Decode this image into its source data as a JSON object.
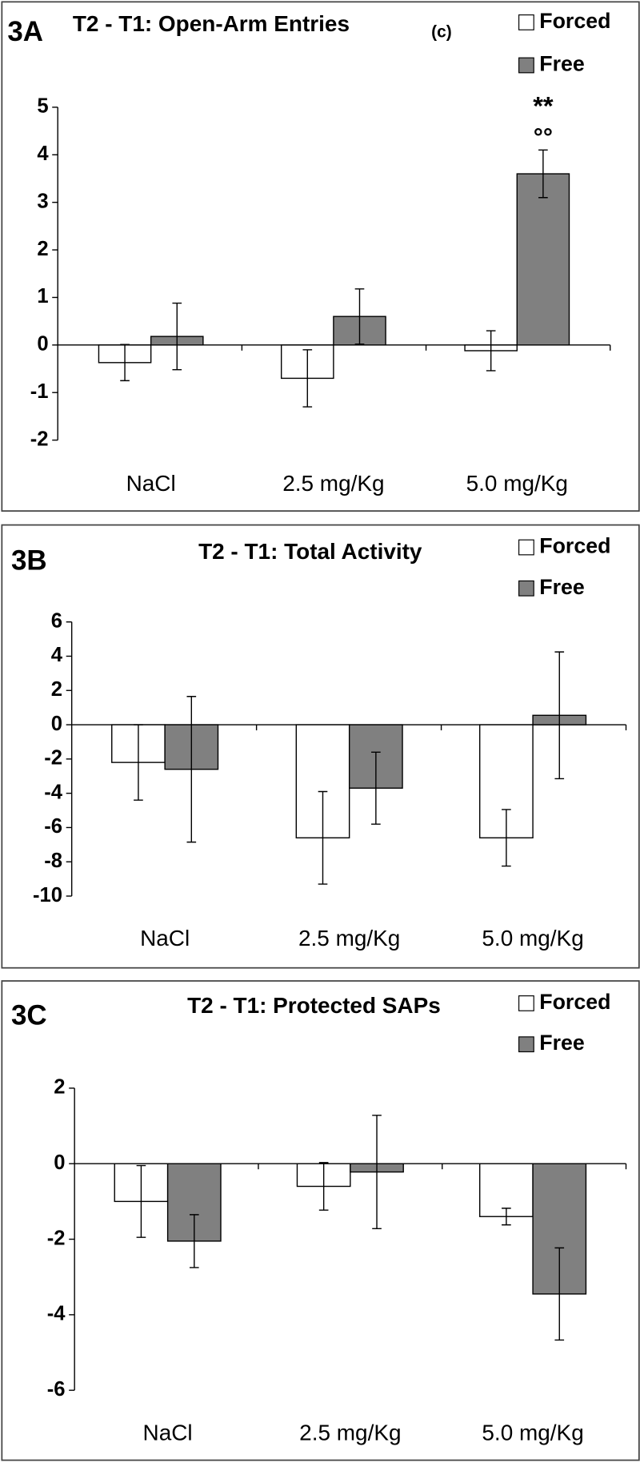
{
  "chart_data": [
    {
      "type": "bar",
      "panel_label": "3A",
      "title": "T2 - T1: Open-Arm Entries",
      "title_note": "(c)",
      "categories": [
        "NaCl",
        "2.5 mg/Kg",
        "5.0 mg/Kg"
      ],
      "series": [
        {
          "name": "Forced",
          "color": "#ffffff",
          "values": [
            -0.37,
            -0.7,
            -0.12
          ],
          "errors": [
            0.38,
            0.6,
            0.42
          ]
        },
        {
          "name": "Free",
          "color": "#808080",
          "values": [
            0.18,
            0.6,
            3.6
          ],
          "errors": [
            0.7,
            0.58,
            0.5
          ]
        }
      ],
      "annotations": [
        "**",
        "°°"
      ],
      "ylim": [
        -2,
        5
      ],
      "yticks": [
        -2,
        -1,
        0,
        1,
        2,
        3,
        4,
        5
      ]
    },
    {
      "type": "bar",
      "panel_label": "3B",
      "title": "T2 - T1: Total Activity",
      "categories": [
        "NaCl",
        "2.5 mg/Kg",
        "5.0 mg/Kg"
      ],
      "series": [
        {
          "name": "Forced",
          "color": "#ffffff",
          "values": [
            -2.2,
            -6.6,
            -6.6
          ],
          "errors": [
            2.2,
            2.7,
            1.65
          ]
        },
        {
          "name": "Free",
          "color": "#808080",
          "values": [
            -2.6,
            -3.7,
            0.55
          ],
          "errors": [
            4.25,
            2.1,
            3.7
          ]
        }
      ],
      "ylim": [
        -10,
        6
      ],
      "yticks": [
        -10,
        -8,
        -6,
        -4,
        -2,
        0,
        2,
        4,
        6
      ]
    },
    {
      "type": "bar",
      "panel_label": "3C",
      "title": "T2 - T1: Protected SAPs",
      "categories": [
        "NaCl",
        "2.5 mg/Kg",
        "5.0 mg/Kg"
      ],
      "series": [
        {
          "name": "Forced",
          "color": "#ffffff",
          "values": [
            -1.0,
            -0.6,
            -1.4
          ],
          "errors": [
            0.95,
            0.63,
            0.22
          ]
        },
        {
          "name": "Free",
          "color": "#808080",
          "values": [
            -2.05,
            -0.22,
            -3.45
          ],
          "errors": [
            0.7,
            1.5,
            1.22
          ]
        }
      ],
      "ylim": [
        -6,
        2
      ],
      "yticks": [
        -6,
        -4,
        -2,
        0,
        2
      ]
    }
  ]
}
